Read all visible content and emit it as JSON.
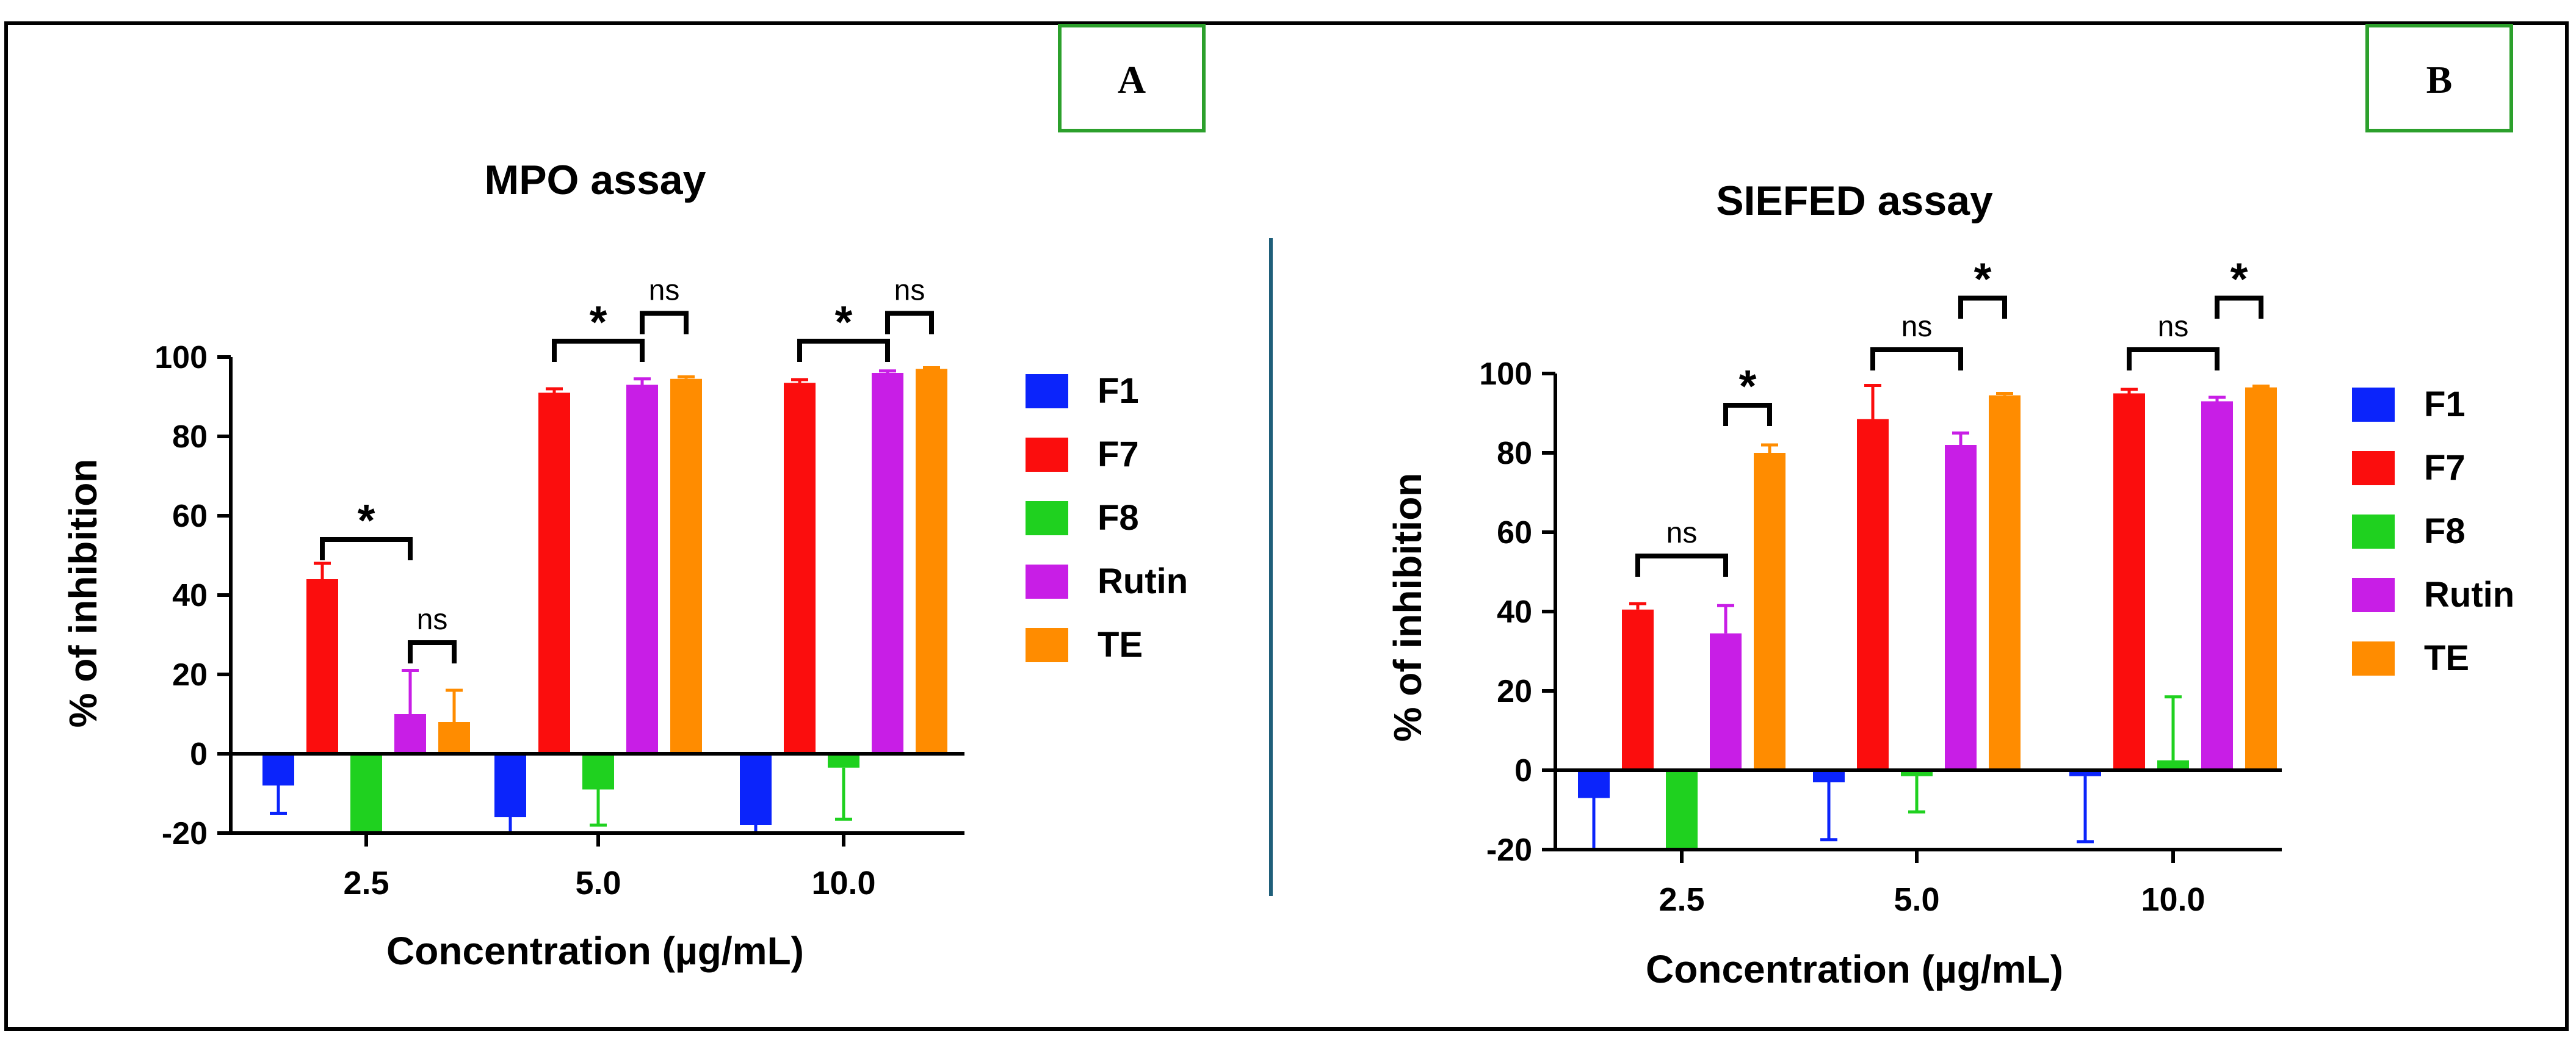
{
  "colors": {
    "border": "#000000",
    "panel_box": "#2ca02c",
    "divider": "#1f5f7a",
    "F1": "#0b24fb",
    "F7": "#fb0d0d",
    "F8": "#1fd11f",
    "Rutin": "#c81ee6",
    "TE": "#ff8c00"
  },
  "legend": [
    "F1",
    "F7",
    "F8",
    "Rutin",
    "TE"
  ],
  "chart_data": [
    {
      "type": "bar",
      "panel_label": "A",
      "title": "MPO assay",
      "xlabel": "Concentration (µg/mL)",
      "ylabel": "% of inhibition",
      "categories": [
        "2.5",
        "5.0",
        "10.0"
      ],
      "ylim": [
        -20,
        100
      ],
      "yticks": [
        -20,
        0,
        20,
        40,
        60,
        80,
        100
      ],
      "series": [
        {
          "name": "F1",
          "values": [
            -8,
            -16,
            -18
          ],
          "errors": [
            7,
            4,
            2
          ]
        },
        {
          "name": "F7",
          "values": [
            44,
            91,
            93.5
          ],
          "errors": [
            4,
            1,
            0.8
          ]
        },
        {
          "name": "F8",
          "values": [
            -20,
            -9,
            -3.5
          ],
          "errors": [
            3,
            9,
            13
          ]
        },
        {
          "name": "Rutin",
          "values": [
            10,
            93,
            96
          ],
          "errors": [
            11,
            1.5,
            0.5
          ]
        },
        {
          "name": "TE",
          "values": [
            8,
            94.5,
            97
          ],
          "errors": [
            8,
            0.5,
            0.3
          ]
        }
      ],
      "significance": [
        {
          "category": 0,
          "from": "F7",
          "to": "Rutin",
          "label": "*",
          "level": 54
        },
        {
          "category": 0,
          "from": "Rutin",
          "to": "TE",
          "label": "ns",
          "level": 28
        },
        {
          "category": 1,
          "from": "F7",
          "to": "Rutin",
          "label": "*",
          "level": 104
        },
        {
          "category": 1,
          "from": "Rutin",
          "to": "TE",
          "label": "ns",
          "level": 111
        },
        {
          "category": 2,
          "from": "F7",
          "to": "Rutin",
          "label": "*",
          "level": 104
        },
        {
          "category": 2,
          "from": "Rutin",
          "to": "TE",
          "label": "ns",
          "level": 111
        }
      ]
    },
    {
      "type": "bar",
      "panel_label": "B",
      "title": "SIEFED assay",
      "xlabel": "Concentration (µg/mL)",
      "ylabel": "% of inhibition",
      "categories": [
        "2.5",
        "5.0",
        "10.0"
      ],
      "ylim": [
        -20,
        100
      ],
      "yticks": [
        -20,
        0,
        20,
        40,
        60,
        80,
        100
      ],
      "series": [
        {
          "name": "F1",
          "values": [
            -7,
            -3,
            -1.5
          ],
          "errors": [
            13,
            14.5,
            16.5
          ]
        },
        {
          "name": "F7",
          "values": [
            40.5,
            88.5,
            95
          ],
          "errors": [
            1.5,
            8.5,
            1
          ]
        },
        {
          "name": "F8",
          "values": [
            -20,
            -1.5,
            2.5
          ],
          "errors": [
            3,
            9,
            16
          ]
        },
        {
          "name": "Rutin",
          "values": [
            34.5,
            82,
            93
          ],
          "errors": [
            7,
            3,
            1
          ]
        },
        {
          "name": "TE",
          "values": [
            80,
            94.5,
            96.5
          ],
          "errors": [
            2,
            0.5,
            0.3
          ]
        }
      ],
      "significance": [
        {
          "category": 0,
          "from": "F7",
          "to": "Rutin",
          "label": "ns",
          "level": 54
        },
        {
          "category": 0,
          "from": "Rutin",
          "to": "TE",
          "label": "*",
          "level": 92
        },
        {
          "category": 1,
          "from": "F7",
          "to": "Rutin",
          "label": "ns",
          "level": 106
        },
        {
          "category": 1,
          "from": "Rutin",
          "to": "TE",
          "label": "*",
          "level": 119
        },
        {
          "category": 2,
          "from": "F7",
          "to": "Rutin",
          "label": "ns",
          "level": 106
        },
        {
          "category": 2,
          "from": "Rutin",
          "to": "TE",
          "label": "*",
          "level": 119
        }
      ]
    }
  ]
}
